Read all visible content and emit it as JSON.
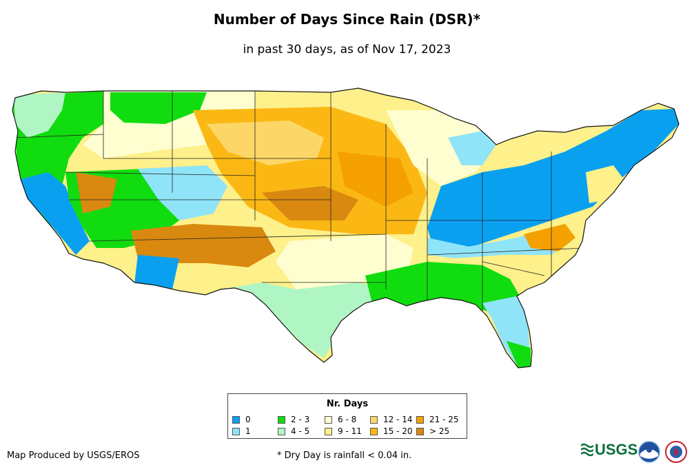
{
  "title": "Number of Days Since Rain (DSR)*",
  "subtitle": "in past 30 days, as of Nov 17, 2023",
  "legend": {
    "title": "Nr. Days",
    "items": [
      {
        "label": "0",
        "color": "#0aa0f0"
      },
      {
        "label": "1",
        "color": "#90e4f8"
      },
      {
        "label": "2 - 3",
        "color": "#10dc10"
      },
      {
        "label": "4 - 5",
        "color": "#b0f6c4"
      },
      {
        "label": "6 - 8",
        "color": "#fefed0"
      },
      {
        "label": "9 - 11",
        "color": "#fef08a"
      },
      {
        "label": "12 - 14",
        "color": "#fcd768"
      },
      {
        "label": "15 - 20",
        "color": "#fbb814"
      },
      {
        "label": "21 - 25",
        "color": "#f4a000"
      },
      {
        "label": "> 25",
        "color": "#d98910"
      }
    ]
  },
  "credit": "Map Produced by USGS/EROS",
  "footnote": "* Dry Day is rainfall < 0.04 in.",
  "logos": {
    "usgs": "USGS",
    "noaa": "noaa-logo",
    "nws": "nws-logo"
  }
}
